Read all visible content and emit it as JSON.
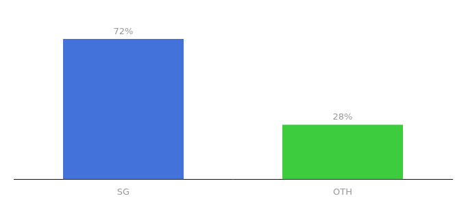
{
  "chart_data": {
    "type": "bar",
    "categories": [
      "SG",
      "OTH"
    ],
    "values": [
      72,
      28
    ],
    "value_labels": [
      "72%",
      "28%"
    ],
    "colors": [
      "#4472db",
      "#3dcc3d"
    ],
    "ylim": [
      0,
      85
    ],
    "data_labels": true,
    "tick_labels": "x",
    "grid": false
  }
}
